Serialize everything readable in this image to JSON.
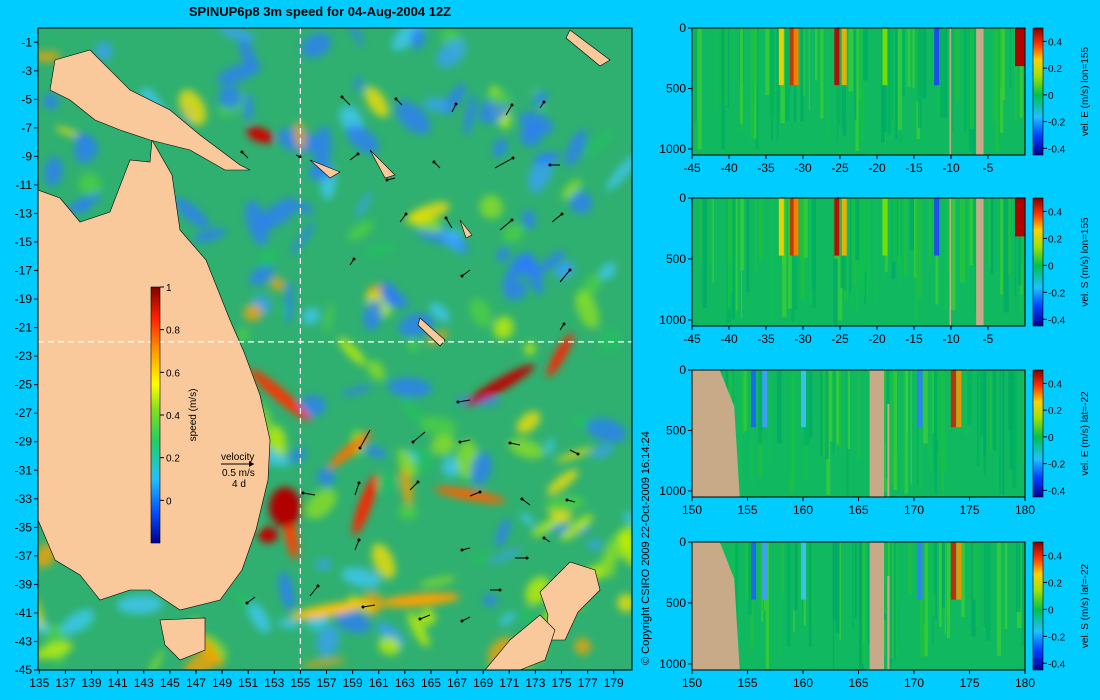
{
  "map": {
    "title": "SPINUP6p8 3m speed for 04-Aug-2004 12Z",
    "lon_ticks": [
      135,
      137,
      139,
      141,
      143,
      145,
      147,
      149,
      151,
      153,
      155,
      157,
      159,
      161,
      163,
      165,
      167,
      169,
      171,
      173,
      175,
      177,
      179
    ],
    "lat_ticks": [
      -1,
      -3,
      -5,
      -7,
      -9,
      -11,
      -13,
      -15,
      -17,
      -19,
      -21,
      -23,
      -25,
      -27,
      -29,
      -31,
      -33,
      -35,
      -37,
      -39,
      -41,
      -43,
      -45
    ],
    "section_lon": 155,
    "section_lat": -22,
    "colorbar": {
      "label": "speed (m/s)",
      "ticks": [
        "0",
        "0.2",
        "0.4",
        "0.6",
        "0.8",
        "1"
      ],
      "range": [
        -0.2,
        1.0
      ]
    },
    "velocity_key": {
      "label": "velocity",
      "scale": "0.5 m/s",
      "duration": "4 d"
    },
    "land_color": "#f9c89b",
    "copyright": "© Copyright CSIRO 2009   22-Oct-2009 16:14:24"
  },
  "chart_data": [
    {
      "type": "heatmap",
      "title": "",
      "xlabel": "",
      "ylabel": "vel. E (m/s) lon=155",
      "x_ticks": [
        "-45",
        "-40",
        "-35",
        "-30",
        "-25",
        "-20",
        "-15",
        "-10",
        "-5"
      ],
      "xlim": [
        -45,
        0
      ],
      "y_ticks": [
        "0",
        "500",
        "1000"
      ],
      "ylim": [
        1050,
        0
      ],
      "colorbar_ticks": [
        "0.4",
        "0.2",
        "0",
        "-0.2",
        "-0.4"
      ],
      "colorbar_range": [
        -0.45,
        0.5
      ]
    },
    {
      "type": "heatmap",
      "title": "",
      "xlabel": "",
      "ylabel": "vel. S (m/s) lon=155",
      "x_ticks": [
        "-45",
        "-40",
        "-35",
        "-30",
        "-25",
        "-20",
        "-15",
        "-10",
        "-5"
      ],
      "xlim": [
        -45,
        0
      ],
      "y_ticks": [
        "0",
        "500",
        "1000"
      ],
      "ylim": [
        1050,
        0
      ],
      "colorbar_ticks": [
        "0.4",
        "0.2",
        "0",
        "-0.2",
        "-0.4"
      ],
      "colorbar_range": [
        -0.45,
        0.5
      ]
    },
    {
      "type": "heatmap",
      "title": "",
      "xlabel": "",
      "ylabel": "vel. E (m/s) lat=-22",
      "x_ticks": [
        "150",
        "155",
        "160",
        "165",
        "170",
        "175",
        "180"
      ],
      "xlim": [
        150,
        180
      ],
      "y_ticks": [
        "0",
        "500",
        "1000"
      ],
      "ylim": [
        1050,
        0
      ],
      "colorbar_ticks": [
        "0.4",
        "0.2",
        "0",
        "-0.2",
        "-0.4"
      ],
      "colorbar_range": [
        -0.45,
        0.5
      ]
    },
    {
      "type": "heatmap",
      "title": "",
      "xlabel": "",
      "ylabel": "vel. S (m/s) lat=-22",
      "x_ticks": [
        "150",
        "155",
        "160",
        "165",
        "170",
        "175",
        "180"
      ],
      "xlim": [
        150,
        180
      ],
      "y_ticks": [
        "0",
        "500",
        "1000"
      ],
      "ylim": [
        1050,
        0
      ],
      "colorbar_ticks": [
        "0.4",
        "0.2",
        "0",
        "-0.2",
        "-0.4"
      ],
      "colorbar_range": [
        -0.45,
        0.5
      ]
    }
  ]
}
